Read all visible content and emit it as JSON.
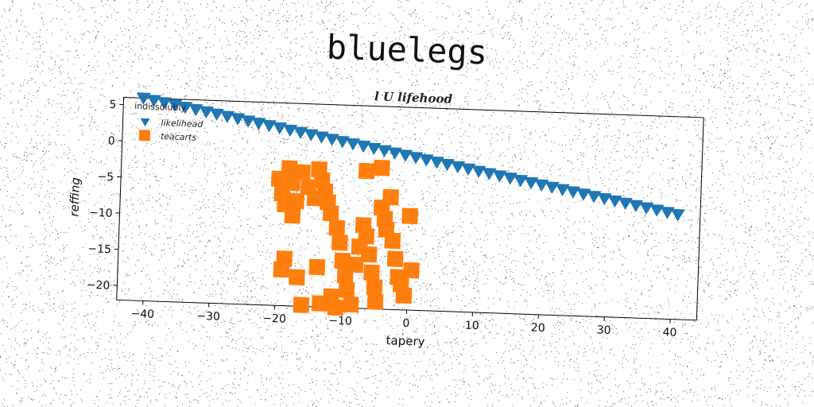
{
  "title": "bluelegs",
  "subtitle": "l U lifehood",
  "chart_data": {
    "type": "scatter",
    "xlabel": "tapery",
    "ylabel": "reffing",
    "xlim": [
      -44,
      44
    ],
    "ylim": [
      -22,
      6
    ],
    "xticks": [
      -40,
      -30,
      -20,
      -10,
      0,
      10,
      20,
      30,
      40
    ],
    "yticks": [
      5,
      0,
      -5,
      -10,
      -15,
      -20
    ],
    "grid": false,
    "legend": {
      "title": "indissolubly",
      "placement": "top-left"
    },
    "series": [
      {
        "name": "likelihead",
        "marker": "triangle-down",
        "color": "#1f77b4",
        "x": [
          -41,
          -39.4,
          -37.8,
          -36.2,
          -34.6,
          -33,
          -31.4,
          -29.8,
          -28.2,
          -26.6,
          -25,
          -23.4,
          -21.8,
          -20.2,
          -18.6,
          -17,
          -15.4,
          -13.8,
          -12.2,
          -10.6,
          -9,
          -7.4,
          -5.8,
          -4.2,
          -2.6,
          -1,
          0.6,
          2.2,
          3.8,
          5.4,
          7,
          8.6,
          10.2,
          11.8,
          13.4,
          15,
          16.6,
          18.2,
          19.8,
          21.4,
          23,
          24.6,
          26.2,
          27.8,
          29.4,
          31,
          32.6,
          34.2,
          35.8,
          37.4,
          39,
          40.6
        ],
        "y": [
          6.0,
          5.74,
          5.47,
          5.21,
          4.94,
          4.68,
          4.41,
          4.15,
          3.88,
          3.62,
          3.35,
          3.09,
          2.82,
          2.56,
          2.29,
          2.03,
          1.76,
          1.5,
          1.23,
          0.97,
          0.7,
          0.44,
          0.17,
          -0.09,
          -0.36,
          -0.62,
          -0.89,
          -1.15,
          -1.42,
          -1.68,
          -1.95,
          -2.21,
          -2.48,
          -2.74,
          -3.01,
          -3.27,
          -3.54,
          -3.8,
          -4.07,
          -4.33,
          -4.6,
          -4.86,
          -5.13,
          -5.39,
          -5.66,
          -5.92,
          -6.19,
          -6.45,
          -6.72,
          -6.98,
          -7.25,
          -7.51
        ]
      },
      {
        "name": "teacarts",
        "marker": "square",
        "color": "#ff7f0e",
        "x": [
          -20,
          -19.5,
          -19,
          -18.5,
          -18,
          -17.8,
          -17.3,
          -16.5,
          -15.5,
          -14.5,
          -14,
          -13.5,
          -13,
          -12.5,
          -12,
          -11,
          -10.5,
          -10,
          -9.5,
          -9.2,
          -8.5,
          -8,
          -7.5,
          -7,
          -6.5,
          -6,
          -5.5,
          -5,
          -4.8,
          -4.3,
          -3.8,
          -3.5,
          -3,
          -2.5,
          -2,
          -1.5,
          -1,
          -0.5,
          0,
          0.5,
          -13.2,
          -11.5,
          -10.8,
          -16,
          -19.2,
          -18.8,
          -4.5,
          -16.8,
          -13.8,
          -6.8
        ],
        "y": [
          -4.5,
          -6.5,
          -8,
          -3,
          -5,
          -9.5,
          -7.5,
          -3.5,
          -5.5,
          -7,
          -3,
          -4.5,
          -6,
          -7.5,
          -9,
          -11,
          -13,
          -15.5,
          -17.5,
          -19.5,
          -21.5,
          -16,
          -13.5,
          -10.5,
          -12,
          -14.5,
          -17,
          -19,
          -21,
          -8,
          -9.5,
          -11,
          -6.5,
          -12.5,
          -15,
          -17.5,
          -18.5,
          -20,
          -9,
          -16.5,
          -21.5,
          -20.5,
          -22,
          -21.8,
          -17,
          -15.5,
          -2.5,
          -18,
          -16.5,
          -3
        ]
      }
    ]
  }
}
